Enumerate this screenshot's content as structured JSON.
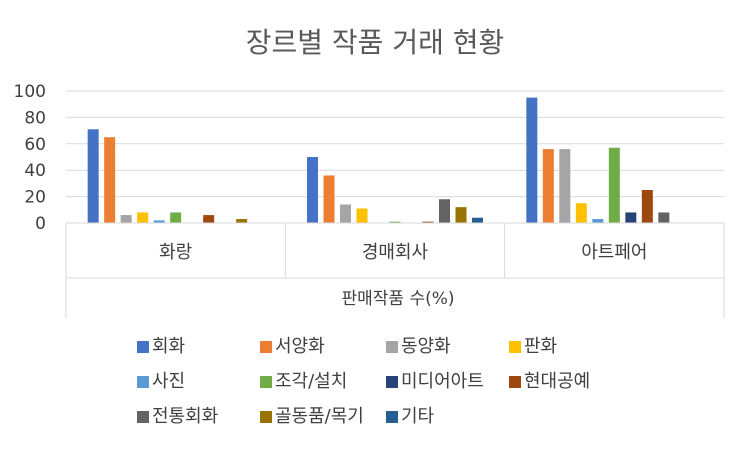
{
  "chart_data": {
    "type": "bar",
    "title": "장르별 작품 거래 현황",
    "xlabel": "판매작품 수(%)",
    "ylabel": "",
    "ylim": [
      0,
      100
    ],
    "yticks": [
      0,
      20,
      40,
      60,
      80,
      100
    ],
    "grid": true,
    "legend_position": "bottom",
    "categories": [
      "화랑",
      "경매회사",
      "아트페어"
    ],
    "series": [
      {
        "name": "회화",
        "color": "#4472C4",
        "values": [
          71,
          50,
          95
        ]
      },
      {
        "name": "서양화",
        "color": "#ED7D31",
        "values": [
          65,
          36,
          56
        ]
      },
      {
        "name": "동양화",
        "color": "#A5A5A5",
        "values": [
          6,
          14,
          56
        ]
      },
      {
        "name": "판화",
        "color": "#FFC000",
        "values": [
          8,
          11,
          15
        ]
      },
      {
        "name": "사진",
        "color": "#5B9BD5",
        "values": [
          2,
          0,
          3
        ]
      },
      {
        "name": "조각/설치",
        "color": "#70AD47",
        "values": [
          8,
          1,
          57
        ]
      },
      {
        "name": "미디어아트",
        "color": "#264478",
        "values": [
          0,
          0,
          8
        ]
      },
      {
        "name": "현대공예",
        "color": "#9E480E",
        "values": [
          6,
          1,
          25
        ]
      },
      {
        "name": "전통회화",
        "color": "#636363",
        "values": [
          0,
          18,
          8
        ]
      },
      {
        "name": "골동품/목기",
        "color": "#997300",
        "values": [
          3,
          12,
          0
        ]
      },
      {
        "name": "기타",
        "color": "#255E91",
        "values": [
          0,
          4,
          0
        ]
      }
    ]
  }
}
